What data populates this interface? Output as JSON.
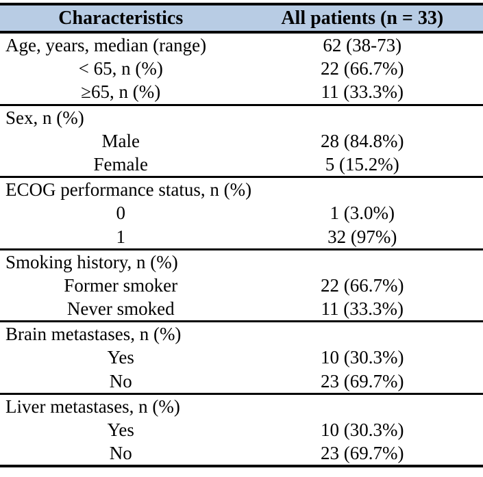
{
  "colors": {
    "header_bg": "#b8cce4",
    "border": "#000000",
    "text": "#000000"
  },
  "table": {
    "header": {
      "col1": "Characteristics",
      "col2": "All patients (n = 33)"
    },
    "sections": [
      {
        "rows": [
          {
            "label": "Age, years, median (range)",
            "value": "62 (38-73)"
          },
          {
            "label": "< 65, n (%)",
            "value": "22 (66.7%)"
          },
          {
            "label": "≥65, n (%)",
            "value": "11 (33.3%)"
          }
        ]
      },
      {
        "rows": [
          {
            "label": "Sex, n (%)",
            "value": ""
          },
          {
            "label": "Male",
            "value": "28 (84.8%)"
          },
          {
            "label": "Female",
            "value": "5 (15.2%)"
          }
        ]
      },
      {
        "rows": [
          {
            "label": "ECOG performance status, n (%)",
            "value": ""
          },
          {
            "label": "0",
            "value": "1 (3.0%)"
          },
          {
            "label": "1",
            "value": "32 (97%)"
          }
        ]
      },
      {
        "rows": [
          {
            "label": "Smoking history, n (%)",
            "value": ""
          },
          {
            "label": "Former smoker",
            "value": "22 (66.7%)"
          },
          {
            "label": "Never smoked",
            "value": "11 (33.3%)"
          }
        ]
      },
      {
        "rows": [
          {
            "label": "Brain metastases, n (%)",
            "value": ""
          },
          {
            "label": "Yes",
            "value": "10 (30.3%)"
          },
          {
            "label": "No",
            "value": "23 (69.7%)"
          }
        ]
      },
      {
        "rows": [
          {
            "label": "Liver metastases, n (%)",
            "value": ""
          },
          {
            "label": "Yes",
            "value": "10 (30.3%)"
          },
          {
            "label": "No",
            "value": "23 (69.7%)"
          }
        ]
      }
    ]
  }
}
